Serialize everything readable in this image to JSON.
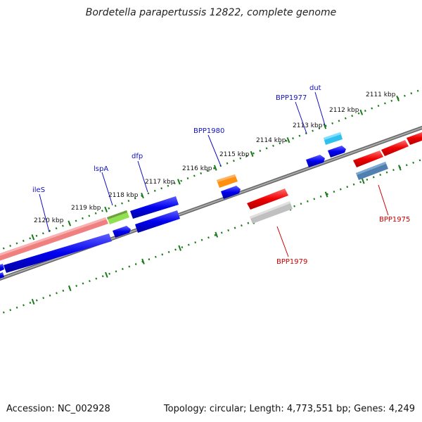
{
  "title": "Bordetella parapertussis 12822, complete genome",
  "footer": {
    "accession": "Accession: NC_002928",
    "summary": "Topology: circular; Length: 4,773,551 bp; Genes: 4,249"
  },
  "colors": {
    "backbone": "#888888",
    "tick": "#1a7a1a",
    "label_blue": "#1010c0",
    "label_red": "#cc0000"
  },
  "ticks": [
    {
      "label": "2111 kbp"
    },
    {
      "label": "2112 kbp"
    },
    {
      "label": "2113 kbp"
    },
    {
      "label": "2114 kbp"
    },
    {
      "label": "2115 kbp"
    },
    {
      "label": "2116 kbp"
    },
    {
      "label": "2117 kbp"
    },
    {
      "label": "2118 kbp"
    },
    {
      "label": "2119 kbp"
    },
    {
      "label": "2120 kbp"
    }
  ],
  "gene_labels": [
    {
      "name": "ileS",
      "color": "#1010c0"
    },
    {
      "name": "lspA",
      "color": "#1010c0"
    },
    {
      "name": "dfp",
      "color": "#1010c0"
    },
    {
      "name": "BPP1980",
      "color": "#1010c0"
    },
    {
      "name": "BPP1977",
      "color": "#1010c0"
    },
    {
      "name": "dut",
      "color": "#1010c0"
    },
    {
      "name": "BPP1979",
      "color": "#cc0000"
    },
    {
      "name": "BPP1975",
      "color": "#cc0000"
    }
  ],
  "features": [
    {
      "name": "ileS-gene",
      "color": "#f08080"
    },
    {
      "name": "lspA-gene",
      "color": "#90e050"
    },
    {
      "name": "dfp-gene",
      "color": "#1010e0"
    },
    {
      "name": "BPP1980-gene",
      "color": "#ff9010"
    },
    {
      "name": "dut-gene",
      "color": "#30c0f0"
    },
    {
      "name": "BPP1979-gene",
      "color": "#ee1010"
    },
    {
      "name": "BPP1979-grey-gene",
      "color": "#c0c0c0"
    },
    {
      "name": "BPP1975-gene",
      "color": "#5080b0"
    }
  ]
}
